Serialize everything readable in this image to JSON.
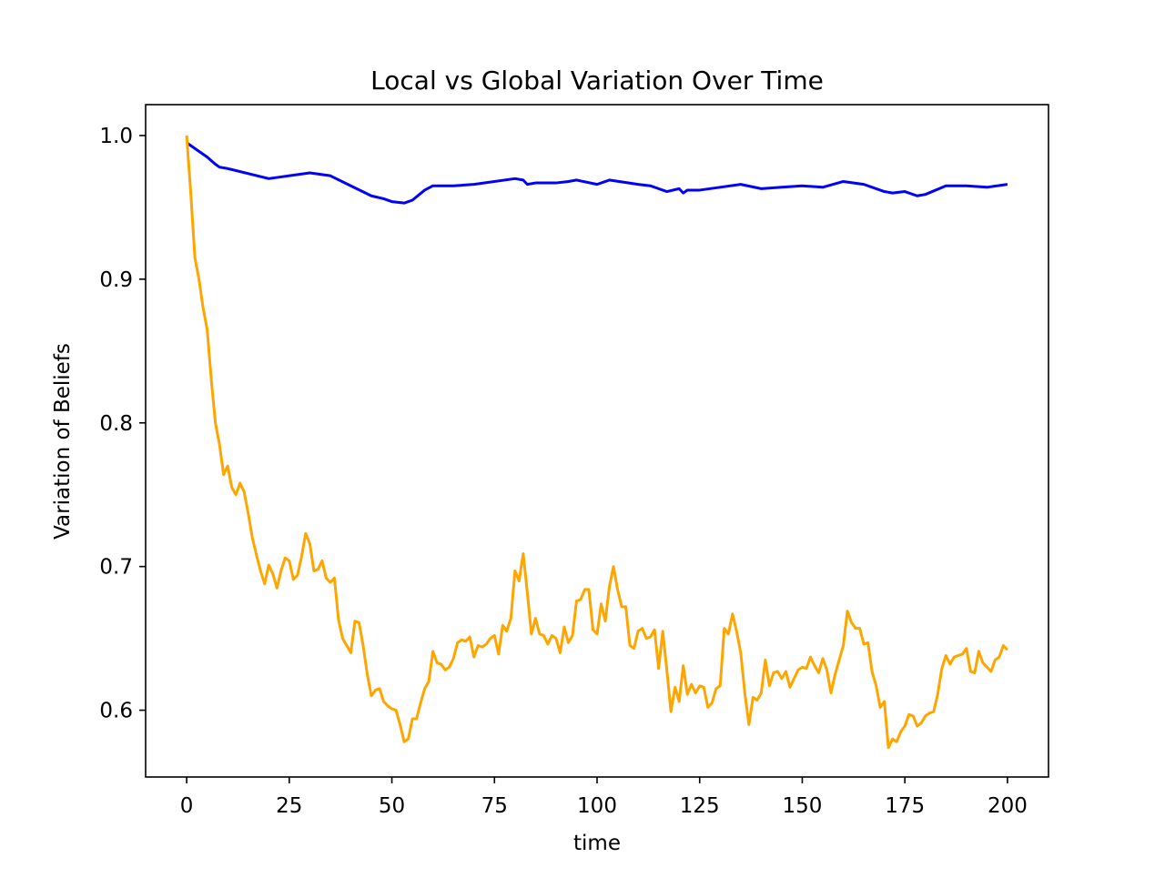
{
  "chart_data": {
    "type": "line",
    "title": "Local vs Global Variation Over Time",
    "xlabel": "time",
    "ylabel": "Variation of Beliefs",
    "xlim": [
      -10,
      210
    ],
    "ylim": [
      0.5535,
      1.0215
    ],
    "xticks": [
      0,
      25,
      50,
      75,
      100,
      125,
      150,
      175,
      200
    ],
    "yticks": [
      0.6,
      0.7,
      0.8,
      0.9,
      1.0
    ],
    "grid": false,
    "legend": "none",
    "series": [
      {
        "color": "#0000ff",
        "x": [
          0,
          5,
          7,
          8,
          10,
          20,
          30,
          35,
          40,
          45,
          48,
          50,
          53,
          55,
          58,
          60,
          65,
          70,
          80,
          82,
          83,
          85,
          90,
          93,
          95,
          100,
          103,
          110,
          113,
          115,
          117,
          120,
          121,
          122,
          125,
          130,
          135,
          140,
          145,
          150,
          155,
          160,
          165,
          170,
          172,
          175,
          178,
          180,
          185,
          190,
          195,
          200
        ],
        "y": [
          0.995,
          0.985,
          0.98,
          0.978,
          0.977,
          0.97,
          0.974,
          0.972,
          0.965,
          0.958,
          0.956,
          0.954,
          0.953,
          0.955,
          0.962,
          0.965,
          0.965,
          0.966,
          0.97,
          0.969,
          0.966,
          0.967,
          0.967,
          0.968,
          0.969,
          0.966,
          0.969,
          0.966,
          0.965,
          0.963,
          0.961,
          0.963,
          0.96,
          0.962,
          0.962,
          0.964,
          0.966,
          0.963,
          0.964,
          0.965,
          0.964,
          0.968,
          0.966,
          0.961,
          0.96,
          0.961,
          0.958,
          0.959,
          0.965,
          0.965,
          0.964,
          0.966
        ]
      },
      {
        "color": "#ffa500",
        "x": [
          0,
          1,
          2,
          3,
          4,
          5,
          6,
          7,
          8,
          9,
          10,
          11,
          12,
          13,
          14,
          15,
          16,
          17,
          18,
          19,
          20,
          21,
          22,
          23,
          24,
          25,
          26,
          27,
          28,
          29,
          30,
          31,
          32,
          33,
          34,
          35,
          36,
          37,
          38,
          39,
          40,
          41,
          42,
          43,
          44,
          45,
          46,
          47,
          48,
          49,
          50,
          51,
          52,
          53,
          54,
          55,
          56,
          57,
          58,
          59,
          60,
          61,
          62,
          63,
          64,
          65,
          66,
          67,
          68,
          69,
          70,
          71,
          72,
          73,
          74,
          75,
          76,
          77,
          78,
          79,
          80,
          81,
          82,
          83,
          84,
          85,
          86,
          87,
          88,
          89,
          90,
          91,
          92,
          93,
          94,
          95,
          96,
          97,
          98,
          99,
          100,
          101,
          102,
          103,
          104,
          105,
          106,
          107,
          108,
          109,
          110,
          111,
          112,
          113,
          114,
          115,
          116,
          117,
          118,
          119,
          120,
          121,
          122,
          123,
          124,
          125,
          126,
          127,
          128,
          129,
          130,
          131,
          132,
          133,
          134,
          135,
          136,
          137,
          138,
          139,
          140,
          141,
          142,
          143,
          144,
          145,
          146,
          147,
          148,
          149,
          150,
          151,
          152,
          153,
          154,
          155,
          156,
          157,
          158,
          159,
          160,
          161,
          162,
          163,
          164,
          165,
          166,
          167,
          168,
          169,
          170,
          171,
          172,
          173,
          174,
          175,
          176,
          177,
          178,
          179,
          180,
          181,
          182,
          183,
          184,
          185,
          186,
          187,
          188,
          189,
          190,
          191,
          192,
          193,
          194,
          195,
          196,
          197,
          198,
          199,
          200
        ],
        "y": [
          1.0,
          0.96,
          0.915,
          0.9,
          0.88,
          0.865,
          0.83,
          0.8,
          0.785,
          0.764,
          0.77,
          0.755,
          0.75,
          0.758,
          0.752,
          0.737,
          0.72,
          0.708,
          0.697,
          0.688,
          0.701,
          0.695,
          0.685,
          0.697,
          0.706,
          0.704,
          0.691,
          0.694,
          0.707,
          0.723,
          0.716,
          0.697,
          0.698,
          0.704,
          0.692,
          0.689,
          0.692,
          0.663,
          0.65,
          0.645,
          0.64,
          0.662,
          0.661,
          0.645,
          0.625,
          0.61,
          0.614,
          0.615,
          0.606,
          0.603,
          0.601,
          0.6,
          0.59,
          0.578,
          0.58,
          0.594,
          0.594,
          0.605,
          0.615,
          0.62,
          0.641,
          0.633,
          0.632,
          0.628,
          0.63,
          0.636,
          0.647,
          0.649,
          0.648,
          0.651,
          0.637,
          0.645,
          0.644,
          0.646,
          0.65,
          0.652,
          0.639,
          0.659,
          0.655,
          0.664,
          0.697,
          0.69,
          0.709,
          0.682,
          0.653,
          0.664,
          0.653,
          0.652,
          0.646,
          0.652,
          0.65,
          0.64,
          0.658,
          0.647,
          0.652,
          0.676,
          0.677,
          0.684,
          0.684,
          0.656,
          0.653,
          0.674,
          0.662,
          0.686,
          0.7,
          0.684,
          0.672,
          0.672,
          0.645,
          0.643,
          0.655,
          0.657,
          0.65,
          0.651,
          0.656,
          0.629,
          0.655,
          0.628,
          0.599,
          0.616,
          0.606,
          0.631,
          0.611,
          0.618,
          0.612,
          0.617,
          0.616,
          0.602,
          0.605,
          0.615,
          0.617,
          0.657,
          0.653,
          0.667,
          0.655,
          0.64,
          0.612,
          0.59,
          0.609,
          0.607,
          0.612,
          0.635,
          0.617,
          0.626,
          0.627,
          0.622,
          0.627,
          0.616,
          0.622,
          0.628,
          0.63,
          0.629,
          0.637,
          0.631,
          0.626,
          0.636,
          0.628,
          0.612,
          0.625,
          0.635,
          0.645,
          0.669,
          0.661,
          0.657,
          0.657,
          0.646,
          0.647,
          0.627,
          0.617,
          0.602,
          0.606,
          0.574,
          0.58,
          0.578,
          0.585,
          0.589,
          0.597,
          0.596,
          0.589,
          0.591,
          0.596,
          0.598,
          0.599,
          0.611,
          0.629,
          0.638,
          0.632,
          0.637,
          0.638,
          0.639,
          0.643,
          0.627,
          0.626,
          0.641,
          0.633,
          0.63,
          0.627,
          0.635,
          0.637,
          0.645,
          0.642
        ]
      }
    ]
  }
}
